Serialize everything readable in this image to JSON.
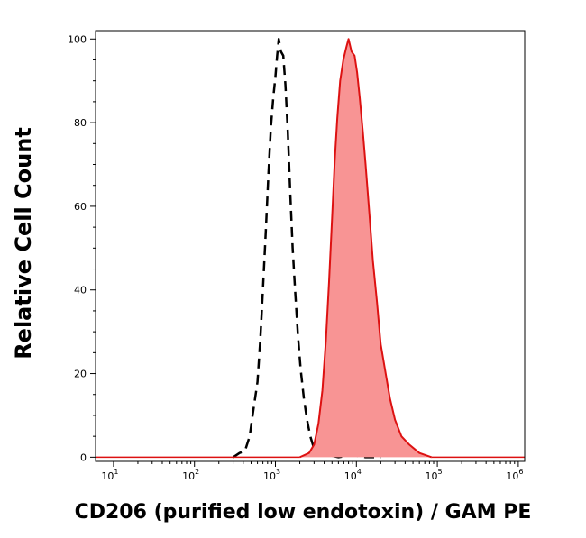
{
  "chart_data": {
    "type": "area",
    "xlabel": "CD206 (purified low endotoxin) / GAM PE",
    "ylabel": "Relative Cell Count",
    "x_scale": "log",
    "xlim": [
      6,
      1200000
    ],
    "ylim": [
      -1,
      102
    ],
    "x_ticks": [
      {
        "value": 10,
        "base": "10",
        "exp": "1"
      },
      {
        "value": 100,
        "base": "10",
        "exp": "2"
      },
      {
        "value": 1000,
        "base": "10",
        "exp": "3"
      },
      {
        "value": 10000,
        "base": "10",
        "exp": "4"
      },
      {
        "value": 100000,
        "base": "10",
        "exp": "5"
      },
      {
        "value": 1000000,
        "base": "10",
        "exp": "6"
      }
    ],
    "y_ticks": [
      {
        "value": 0,
        "label": "0"
      },
      {
        "value": 20,
        "label": "20"
      },
      {
        "value": 40,
        "label": "40"
      },
      {
        "value": 60,
        "label": "60"
      },
      {
        "value": 80,
        "label": "80"
      },
      {
        "value": 100,
        "label": "100"
      }
    ],
    "grid": false,
    "series": [
      {
        "style": "dashed",
        "color": "#000000",
        "filled": false,
        "points": [
          [
            300,
            0
          ],
          [
            360,
            1
          ],
          [
            420,
            1.5
          ],
          [
            480,
            5
          ],
          [
            540,
            12
          ],
          [
            600,
            18
          ],
          [
            650,
            28
          ],
          [
            700,
            40
          ],
          [
            760,
            54
          ],
          [
            820,
            68
          ],
          [
            880,
            79
          ],
          [
            940,
            86
          ],
          [
            1000,
            91
          ],
          [
            1050,
            96
          ],
          [
            1100,
            100
          ],
          [
            1170,
            97
          ],
          [
            1250,
            96
          ],
          [
            1330,
            89
          ],
          [
            1420,
            78
          ],
          [
            1520,
            64
          ],
          [
            1630,
            50
          ],
          [
            1750,
            40
          ],
          [
            1900,
            29
          ],
          [
            2050,
            21
          ],
          [
            2250,
            14
          ],
          [
            2450,
            9
          ],
          [
            2700,
            5
          ],
          [
            3000,
            2
          ],
          [
            3500,
            1
          ],
          [
            4500,
            0.5
          ],
          [
            6000,
            0
          ],
          [
            9000,
            0.5
          ],
          [
            13000,
            0
          ],
          [
            20000,
            0
          ]
        ]
      },
      {
        "style": "solid",
        "color": "#dd1111",
        "fill": "#f89494",
        "filled": true,
        "points": [
          [
            2000,
            0
          ],
          [
            2600,
            1
          ],
          [
            3000,
            3
          ],
          [
            3400,
            8
          ],
          [
            3800,
            16
          ],
          [
            4200,
            28
          ],
          [
            4600,
            42
          ],
          [
            5000,
            57
          ],
          [
            5400,
            71
          ],
          [
            5800,
            81
          ],
          [
            6300,
            90
          ],
          [
            6900,
            95
          ],
          [
            7500,
            98
          ],
          [
            8000,
            100
          ],
          [
            8700,
            97
          ],
          [
            9500,
            96
          ],
          [
            10200,
            92
          ],
          [
            11000,
            86
          ],
          [
            12000,
            78
          ],
          [
            13000,
            70
          ],
          [
            14500,
            58
          ],
          [
            16000,
            47
          ],
          [
            18000,
            37
          ],
          [
            20000,
            27
          ],
          [
            23000,
            20
          ],
          [
            26000,
            14
          ],
          [
            30000,
            9
          ],
          [
            36000,
            5
          ],
          [
            45000,
            3
          ],
          [
            60000,
            1
          ],
          [
            85000,
            0
          ]
        ]
      }
    ]
  }
}
